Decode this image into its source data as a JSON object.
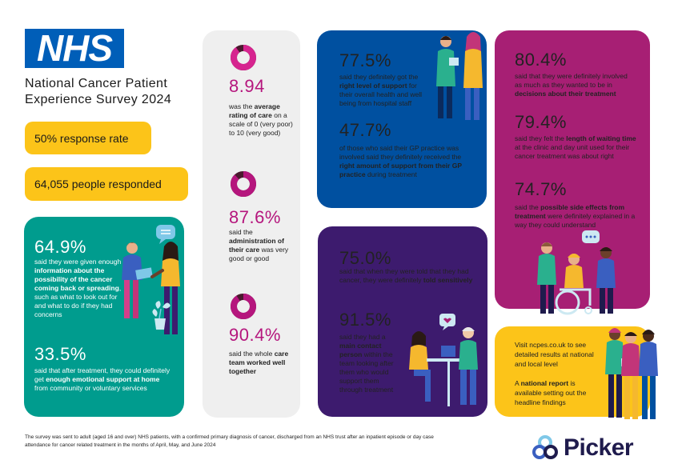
{
  "header": {
    "logo_text": "NHS",
    "title_line1": "National Cancer Patient",
    "title_line2": "Experience Survey 2024",
    "response_rate": "50% response rate",
    "people_responded": "64,055 people responded"
  },
  "colors": {
    "teal": "#009c8e",
    "grey": "#efefef",
    "blue": "#0050a0",
    "purple": "#3d1b6e",
    "magenta": "#a71f74",
    "yellow": "#fcc419",
    "donut_ring": "#b5167d",
    "donut_gap": "#4a1a2e",
    "nhs_blue": "#005eb8"
  },
  "teal_panel": {
    "stat1": "64.9%",
    "stat1_pre": "said they were given enough ",
    "stat1_bold": "information about the possibility of the cancer coming back or spreading",
    "stat1_post": ", such as what to look out for and what to do if they had concerns",
    "stat2": "33.5%",
    "stat2_pre": "said that after treatment, they could definitely get ",
    "stat2_bold": "enough emotional support at home",
    "stat2_post": " from community or voluntary services",
    "icons": [
      "speech-bubble-icon",
      "people-handshake-illustration",
      "plant-illustration"
    ]
  },
  "grey_panel": {
    "stat1": "8.94",
    "stat1_value": 0.894,
    "stat1_pre": "was the ",
    "stat1_bold": "average rating of care",
    "stat1_post": " on a scale of 0 (very poor) to 10 (very good)",
    "stat2": "87.6%",
    "stat2_value": 0.876,
    "stat2_pre": "said the ",
    "stat2_bold": "administration of their care",
    "stat2_post": " was very good or good",
    "stat3": "90.4%",
    "stat3_value": 0.904,
    "stat3_pre": "said the whole ",
    "stat3_bold": "care team worked well together",
    "stat3_post": ""
  },
  "blue_panel": {
    "stat1": "77.5%",
    "stat1_pre": "said they definitely got the ",
    "stat1_bold": "right level of support",
    "stat1_post": " for their overall health and well being from hospital staff",
    "stat2": "47.7%",
    "stat2_pre": "of those who said their GP practice was involved said they definitely received the ",
    "stat2_bold": "right amount of support from their GP practice",
    "stat2_post": " during treatment"
  },
  "purple_panel": {
    "stat1": "75.0%",
    "stat1_pre": "said that when they were told that they had cancer, they were definitely ",
    "stat1_bold": "told sensitively",
    "stat1_post": "",
    "stat2": "91.5%",
    "stat2_pre": "said they had a ",
    "stat2_bold": "main contact person",
    "stat2_post": " within the team looking after them who would support them through treatment"
  },
  "magenta_panel": {
    "stat1": "80.4%",
    "stat1_pre": "said that they were definitely involved as much as they wanted to be in ",
    "stat1_bold": "decisions about their treatment",
    "stat1_post": "",
    "stat2": "79.4%",
    "stat2_pre": "said they felt the ",
    "stat2_bold": "length of waiting time",
    "stat2_post": " at the clinic and day unit used for their cancer treatment was about right",
    "stat3": "74.7%",
    "stat3_pre": "said the ",
    "stat3_bold": "possible side effects from treatment",
    "stat3_post": " were definitely explained in a way they could understand"
  },
  "yellow_panel": {
    "visit": "Visit ncpes.co.uk to see detailed results at national and local level",
    "report_pre": "A ",
    "report_bold": "national report",
    "report_post": " is available setting out the headline findings"
  },
  "footer": {
    "footnote": "The survey was sent to adult (aged 16 and over) NHS patients, with a confirmed primary diagnosis of cancer, discharged from an NHS trust after an inpatient episode or day case attendance for cancer related treatment in the months of April, May, and June 2024",
    "picker_logo_text": "Picker"
  }
}
